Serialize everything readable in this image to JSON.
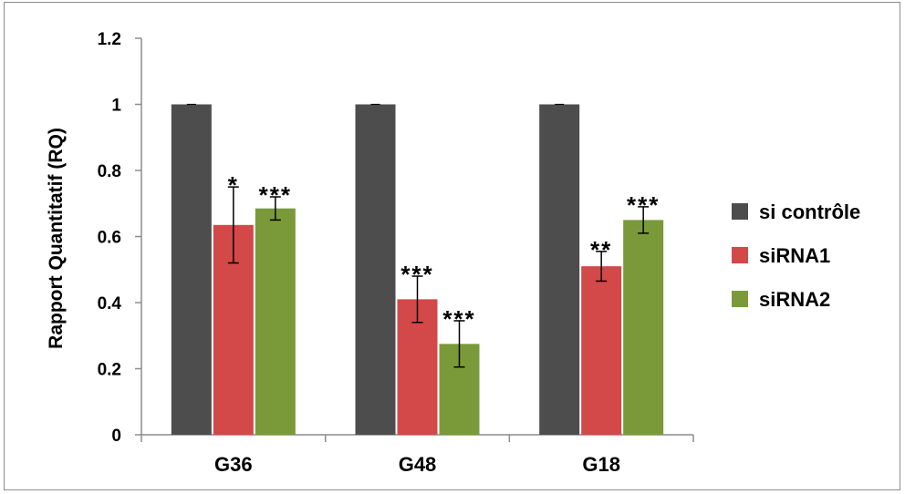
{
  "chart_data": {
    "type": "bar",
    "title": "",
    "xlabel": "",
    "ylabel": "Rapport Quantitatif (RQ)",
    "ylim": [
      0,
      1.2
    ],
    "yticks": [
      "0",
      "0.2",
      "0.4",
      "0.6",
      "0.8",
      "1",
      "1.2"
    ],
    "categories": [
      "G36",
      "G48",
      "G18"
    ],
    "series": [
      {
        "name": "si contrôle",
        "color": "#4d4d4d",
        "values": [
          1.0,
          1.0,
          1.0
        ],
        "errors": [
          0.0,
          0.0,
          0.0
        ],
        "significance": [
          "",
          "",
          ""
        ]
      },
      {
        "name": "siRNA1",
        "color": "#d34848",
        "values": [
          0.635,
          0.41,
          0.51
        ],
        "errors": [
          0.115,
          0.07,
          0.045
        ],
        "significance": [
          "*",
          "***",
          "**"
        ]
      },
      {
        "name": "siRNA2",
        "color": "#7a9a3a",
        "values": [
          0.685,
          0.275,
          0.65
        ],
        "errors": [
          0.035,
          0.07,
          0.04
        ],
        "significance": [
          "***",
          "***",
          "***"
        ]
      }
    ],
    "grid": false,
    "legend_position": "right"
  }
}
